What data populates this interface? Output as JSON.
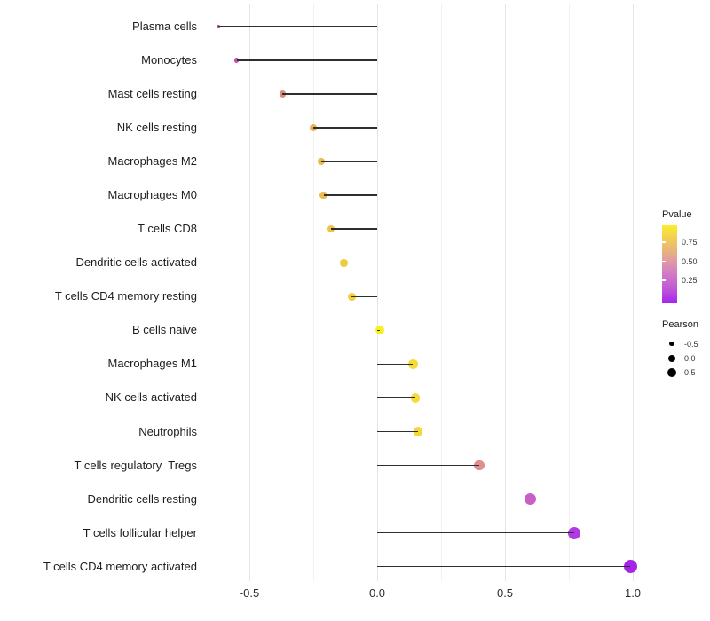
{
  "chart_data": {
    "type": "lollipop",
    "title": "",
    "xlabel": "",
    "ylabel": "",
    "xlim": [
      -0.67,
      1.08
    ],
    "x_ticks": [
      -0.5,
      0.0,
      0.5,
      1.0
    ],
    "x_tick_labels": [
      "-0.5",
      "0.0",
      "0.5",
      "1.0"
    ],
    "minor_gridlines": [
      -0.25,
      0.25,
      0.75
    ],
    "grid": "on",
    "baseline": 0.0,
    "points": [
      {
        "label": "Plasma cells",
        "pearson": -0.62,
        "color": "#C156B3",
        "radius": 2.0
      },
      {
        "label": "Monocytes",
        "pearson": -0.55,
        "color": "#C351AF",
        "radius": 2.8
      },
      {
        "label": "Mast cells resting",
        "pearson": -0.37,
        "color": "#E08B80",
        "radius": 3.7
      },
      {
        "label": "NK cells resting",
        "pearson": -0.25,
        "color": "#EAB156",
        "radius": 4.0
      },
      {
        "label": "Macrophages M2",
        "pearson": -0.22,
        "color": "#EBBB4F",
        "radius": 4.0
      },
      {
        "label": "Macrophages M0",
        "pearson": -0.21,
        "color": "#EBBB4F",
        "radius": 4.1
      },
      {
        "label": "T cells CD8",
        "pearson": -0.18,
        "color": "#EDC348",
        "radius": 4.2
      },
      {
        "label": "Dendritic cells activated",
        "pearson": -0.13,
        "color": "#EFCA43",
        "radius": 4.3
      },
      {
        "label": "T cells CD4 memory resting",
        "pearson": -0.1,
        "color": "#F1D03E",
        "radius": 4.4
      },
      {
        "label": "B cells naive",
        "pearson": 0.01,
        "color": "#F8F121",
        "radius": 5.0
      },
      {
        "label": "Macrophages M1",
        "pearson": 0.14,
        "color": "#F4DA3A",
        "radius": 5.2
      },
      {
        "label": "NK cells activated",
        "pearson": 0.15,
        "color": "#F4DA3A",
        "radius": 5.2
      },
      {
        "label": "Neutrophils",
        "pearson": 0.16,
        "color": "#F3D83C",
        "radius": 5.3
      },
      {
        "label": "T cells regulatory  Tregs",
        "pearson": 0.4,
        "color": "#E08E8E",
        "radius": 5.8
      },
      {
        "label": "Dendritic cells resting",
        "pearson": 0.6,
        "color": "#C75FC6",
        "radius": 6.5
      },
      {
        "label": "T cells follicular helper",
        "pearson": 0.77,
        "color": "#B13BE2",
        "radius": 7.0
      },
      {
        "label": "T cells CD4 memory activated",
        "pearson": 0.99,
        "color": "#A524E5",
        "radius": 7.5
      }
    ],
    "legend_pvalue": {
      "title": "Pvalue",
      "tick_labels": [
        "0.75",
        "0.50",
        "0.25"
      ],
      "gradient_top_to_bottom": [
        "#FAEE2C",
        "#F2CE55",
        "#E9B37C",
        "#DC93AE",
        "#CE74C9",
        "#BF55D6",
        "#A625EF"
      ]
    },
    "legend_pearson": {
      "title": "Pearson",
      "items": [
        {
          "label": "-0.5",
          "radius": 2.6
        },
        {
          "label": "0.0",
          "radius": 4.0
        },
        {
          "label": "0.5",
          "radius": 5.0
        }
      ]
    },
    "stem_color": "#2e2e2e",
    "legend_dot_color": "#000000"
  }
}
